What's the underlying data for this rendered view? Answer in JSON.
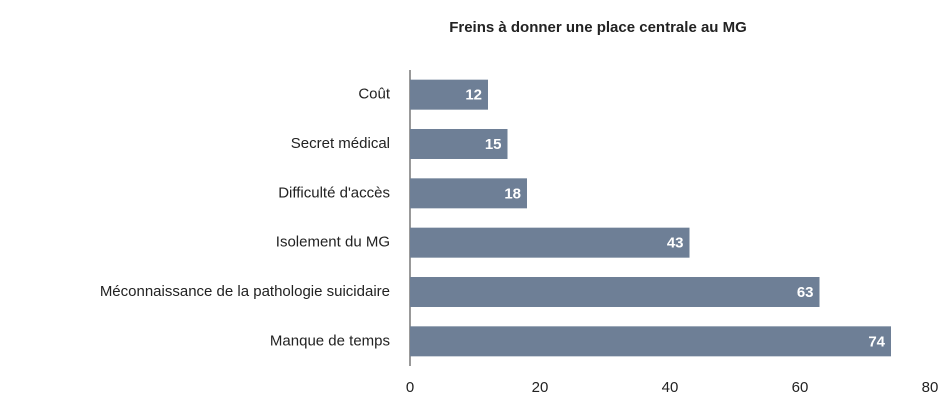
{
  "chart_data": {
    "type": "bar",
    "orientation": "horizontal",
    "title": "Freins à donner une place centrale au MG",
    "categories": [
      "Coût",
      "Secret médical",
      "Difficulté d'accès",
      "Isolement du MG",
      "Méconnaissance de la pathologie suicidaire",
      "Manque de temps"
    ],
    "values": [
      12,
      15,
      18,
      43,
      63,
      74
    ],
    "color": "#6e7f96",
    "xlim": [
      0,
      80
    ],
    "xticks": [
      0,
      20,
      40,
      60,
      80
    ],
    "grid": false
  }
}
